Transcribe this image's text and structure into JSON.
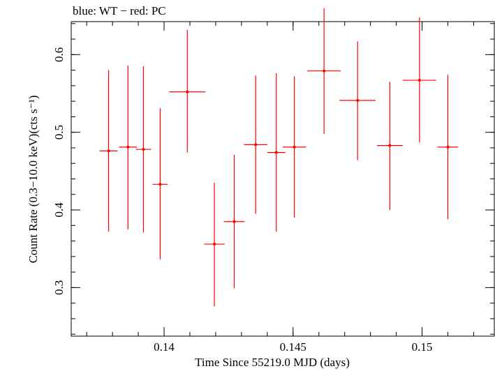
{
  "chart_data": {
    "type": "scatter",
    "title": "blue: WT − red: PC",
    "xlabel": "Time Since 55219.0 MJD (days)",
    "ylabel": "Count Rate (0.3−10.0 keV)(cts s⁻¹)",
    "xlim": [
      0.1364,
      0.1528
    ],
    "ylim": [
      0.2375,
      0.6425
    ],
    "xticks": [
      {
        "v": 0.14,
        "label": "0.14"
      },
      {
        "v": 0.145,
        "label": "0.145"
      },
      {
        "v": 0.15,
        "label": "0.15"
      }
    ],
    "yticks": [
      {
        "v": 0.3,
        "label": "0.3"
      },
      {
        "v": 0.4,
        "label": "0.4"
      },
      {
        "v": 0.5,
        "label": "0.5"
      },
      {
        "v": 0.6,
        "label": "0.6"
      }
    ],
    "xminor_step": 0.001,
    "yminor_step": 0.02,
    "grid": false,
    "series": [
      {
        "name": "PC",
        "color": "#ff0000",
        "points": [
          {
            "x": 0.13785,
            "y": 0.476,
            "xerr": 0.00035,
            "ylo": 0.372,
            "yhi": 0.58
          },
          {
            "x": 0.1386,
            "y": 0.481,
            "xerr": 0.00035,
            "ylo": 0.375,
            "yhi": 0.586
          },
          {
            "x": 0.1392,
            "y": 0.478,
            "xerr": 0.0003,
            "ylo": 0.371,
            "yhi": 0.585
          },
          {
            "x": 0.13985,
            "y": 0.433,
            "xerr": 0.0003,
            "ylo": 0.336,
            "yhi": 0.531
          },
          {
            "x": 0.1409,
            "y": 0.552,
            "xerr": 0.0007,
            "ylo": 0.474,
            "yhi": 0.632
          },
          {
            "x": 0.14195,
            "y": 0.356,
            "xerr": 0.0004,
            "ylo": 0.276,
            "yhi": 0.435
          },
          {
            "x": 0.14272,
            "y": 0.385,
            "xerr": 0.0004,
            "ylo": 0.299,
            "yhi": 0.471
          },
          {
            "x": 0.14355,
            "y": 0.484,
            "xerr": 0.00045,
            "ylo": 0.395,
            "yhi": 0.573
          },
          {
            "x": 0.14435,
            "y": 0.474,
            "xerr": 0.00035,
            "ylo": 0.372,
            "yhi": 0.576
          },
          {
            "x": 0.14505,
            "y": 0.481,
            "xerr": 0.00045,
            "ylo": 0.39,
            "yhi": 0.572
          },
          {
            "x": 0.1462,
            "y": 0.579,
            "xerr": 0.00065,
            "ylo": 0.498,
            "yhi": 0.66
          },
          {
            "x": 0.1475,
            "y": 0.541,
            "xerr": 0.0007,
            "ylo": 0.464,
            "yhi": 0.617
          },
          {
            "x": 0.14875,
            "y": 0.483,
            "xerr": 0.0005,
            "ylo": 0.4,
            "yhi": 0.565
          },
          {
            "x": 0.1499,
            "y": 0.567,
            "xerr": 0.00065,
            "ylo": 0.487,
            "yhi": 0.648
          },
          {
            "x": 0.151,
            "y": 0.481,
            "xerr": 0.0004,
            "ylo": 0.388,
            "yhi": 0.574
          }
        ]
      }
    ]
  }
}
